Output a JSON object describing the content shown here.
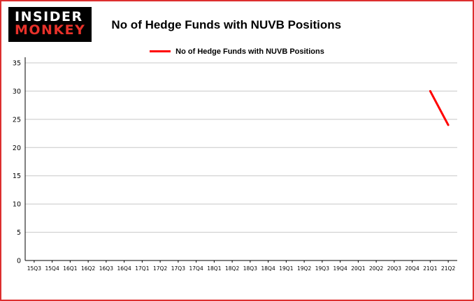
{
  "header": {
    "logo": {
      "line1": "INSIDER",
      "line2": "MONKEY"
    },
    "title": "No of Hedge Funds with NUVB Positions"
  },
  "legend": {
    "label": "No of Hedge Funds with NUVB Positions",
    "color": "#ff0000"
  },
  "colors": {
    "border": "#dd2f2f",
    "grid": "#c8c8c8",
    "axis": "#000000",
    "logo_monkey": "#e8312a",
    "series": "#ff0000"
  },
  "chart_data": {
    "type": "line",
    "title": "No of Hedge Funds with NUVB Positions",
    "xlabel": "",
    "ylabel": "",
    "ylim": [
      0,
      35
    ],
    "ytick_step": 5,
    "grid": true,
    "legend_position": "top",
    "categories": [
      "15Q3",
      "15Q4",
      "16Q1",
      "16Q2",
      "16Q3",
      "16Q4",
      "17Q1",
      "17Q2",
      "17Q3",
      "17Q4",
      "18Q1",
      "18Q2",
      "18Q3",
      "18Q4",
      "19Q1",
      "19Q2",
      "19Q3",
      "19Q4",
      "20Q1",
      "20Q2",
      "20Q3",
      "20Q4",
      "21Q1",
      "21Q2"
    ],
    "series": [
      {
        "name": "No of Hedge Funds with NUVB Positions",
        "color": "#ff0000",
        "values": [
          null,
          null,
          null,
          null,
          null,
          null,
          null,
          null,
          null,
          null,
          null,
          null,
          null,
          null,
          null,
          null,
          null,
          null,
          null,
          null,
          null,
          null,
          30,
          24
        ]
      }
    ]
  }
}
